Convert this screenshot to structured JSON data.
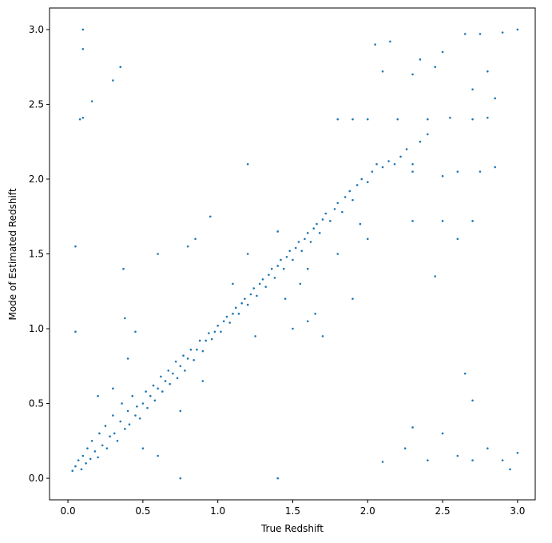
{
  "chart_data": {
    "type": "scatter",
    "xlabel": "True Redshift",
    "ylabel": "Mode of Estimated Redshift",
    "color": "#1f77b4",
    "xlim": [
      -0.123,
      3.118
    ],
    "ylim": [
      -0.144,
      3.144
    ],
    "xticks": [
      {
        "value": 0,
        "label": "0.0"
      },
      0.5,
      {
        "value": 1,
        "label": "1.0"
      },
      1.5,
      {
        "value": 2,
        "label": "2.0"
      },
      2.5,
      {
        "value": 3,
        "label": "3.0"
      }
    ],
    "yticks": [
      {
        "value": 0,
        "label": "0.0"
      },
      0.5,
      {
        "value": 1,
        "label": "1.0"
      },
      1.5,
      {
        "value": 2,
        "label": "2.0"
      },
      2.5,
      {
        "value": 3,
        "label": "3.0"
      }
    ],
    "x": [
      0.03,
      0.05,
      0.07,
      0.09,
      0.1,
      0.12,
      0.13,
      0.15,
      0.16,
      0.18,
      0.2,
      0.21,
      0.23,
      0.25,
      0.26,
      0.28,
      0.3,
      0.31,
      0.33,
      0.35,
      0.36,
      0.38,
      0.4,
      0.41,
      0.43,
      0.45,
      0.46,
      0.48,
      0.5,
      0.52,
      0.53,
      0.55,
      0.57,
      0.58,
      0.6,
      0.62,
      0.63,
      0.65,
      0.67,
      0.68,
      0.7,
      0.72,
      0.73,
      0.75,
      0.77,
      0.78,
      0.8,
      0.82,
      0.84,
      0.86,
      0.88,
      0.9,
      0.92,
      0.94,
      0.96,
      0.98,
      1.0,
      1.02,
      1.04,
      1.06,
      1.08,
      1.1,
      1.12,
      1.14,
      1.16,
      1.18,
      1.2,
      1.22,
      1.24,
      1.26,
      1.28,
      1.3,
      1.32,
      1.34,
      1.36,
      1.38,
      1.4,
      1.42,
      1.44,
      1.46,
      1.48,
      1.5,
      1.52,
      1.54,
      1.56,
      1.58,
      1.6,
      1.62,
      1.64,
      1.66,
      1.68,
      1.7,
      1.72,
      1.75,
      1.78,
      1.8,
      1.83,
      1.85,
      1.88,
      1.9,
      1.93,
      1.96,
      2.0,
      2.03,
      2.06,
      2.1,
      2.14,
      2.18,
      2.22,
      2.26,
      2.3,
      2.35,
      2.4,
      0.2,
      0.3,
      0.5,
      0.6,
      0.75,
      0.9,
      1.1,
      1.25,
      1.45,
      1.55,
      1.6,
      1.8,
      1.9,
      1.7,
      1.6,
      1.65,
      1.5,
      1.95,
      2.0,
      1.4,
      1.2,
      0.85,
      0.95,
      1.2,
      0.6,
      0.8,
      0.4,
      0.45,
      0.1,
      0.1,
      0.3,
      0.35,
      0.16,
      0.08,
      0.1,
      0.05,
      0.05,
      0.37,
      0.38,
      0.75,
      1.4,
      2.1,
      2.05,
      2.15,
      2.3,
      2.35,
      2.45,
      2.5,
      2.65,
      2.75,
      2.9,
      3.0,
      2.7,
      2.8,
      2.85,
      1.8,
      1.9,
      2.0,
      2.2,
      2.4,
      2.55,
      2.7,
      2.8,
      2.3,
      2.5,
      2.6,
      2.75,
      2.85,
      2.3,
      2.5,
      2.7,
      2.6,
      2.45,
      2.1,
      2.25,
      2.3,
      2.4,
      2.5,
      2.6,
      2.7,
      2.8,
      2.9,
      3.0,
      2.65,
      2.7,
      2.95
    ],
    "values": [
      0.05,
      0.08,
      0.12,
      0.06,
      0.15,
      0.1,
      0.2,
      0.13,
      0.25,
      0.18,
      0.14,
      0.3,
      0.22,
      0.35,
      0.2,
      0.28,
      0.42,
      0.3,
      0.25,
      0.38,
      0.5,
      0.33,
      0.45,
      0.36,
      0.55,
      0.42,
      0.48,
      0.4,
      0.5,
      0.58,
      0.47,
      0.55,
      0.62,
      0.52,
      0.6,
      0.68,
      0.58,
      0.65,
      0.72,
      0.63,
      0.7,
      0.78,
      0.67,
      0.75,
      0.82,
      0.72,
      0.8,
      0.86,
      0.79,
      0.86,
      0.92,
      0.85,
      0.92,
      0.97,
      0.93,
      0.98,
      1.02,
      0.98,
      1.05,
      1.08,
      1.04,
      1.1,
      1.14,
      1.1,
      1.17,
      1.2,
      1.16,
      1.23,
      1.27,
      1.22,
      1.3,
      1.33,
      1.28,
      1.36,
      1.4,
      1.34,
      1.42,
      1.46,
      1.4,
      1.48,
      1.52,
      1.46,
      1.54,
      1.58,
      1.52,
      1.6,
      1.64,
      1.58,
      1.67,
      1.7,
      1.64,
      1.73,
      1.77,
      1.72,
      1.8,
      1.84,
      1.78,
      1.88,
      1.92,
      1.86,
      1.96,
      2.0,
      1.98,
      2.05,
      2.1,
      2.08,
      2.12,
      2.1,
      2.15,
      2.2,
      2.1,
      2.25,
      2.3,
      0.55,
      0.6,
      0.2,
      0.15,
      0.45,
      0.65,
      1.3,
      0.95,
      1.2,
      1.3,
      1.4,
      1.5,
      1.2,
      0.95,
      1.05,
      1.1,
      1.0,
      1.7,
      1.6,
      1.65,
      1.5,
      1.6,
      1.75,
      2.1,
      1.5,
      1.55,
      0.8,
      0.98,
      3.0,
      2.87,
      2.66,
      2.75,
      2.52,
      2.4,
      2.41,
      1.55,
      0.98,
      1.4,
      1.07,
      0.0,
      0.0,
      2.72,
      2.9,
      2.92,
      2.7,
      2.8,
      2.75,
      2.85,
      2.97,
      2.97,
      2.98,
      3.0,
      2.6,
      2.72,
      2.54,
      2.4,
      2.4,
      2.4,
      2.4,
      2.4,
      2.41,
      2.4,
      2.41,
      2.05,
      2.02,
      2.05,
      2.05,
      2.08,
      1.72,
      1.72,
      1.72,
      1.6,
      1.35,
      0.11,
      0.2,
      0.34,
      0.12,
      0.3,
      0.15,
      0.12,
      0.2,
      0.12,
      0.17,
      0.7,
      0.52,
      0.06
    ]
  }
}
